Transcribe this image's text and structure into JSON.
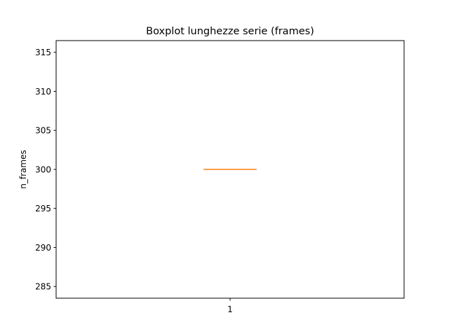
{
  "chart_data": {
    "type": "boxplot",
    "title": "Boxplot lunghezze serie (frames)",
    "xlabel": "",
    "ylabel": "n_frames",
    "categories": [
      "1"
    ],
    "boxes": [
      {
        "category": "1",
        "min": 300,
        "q1": 300,
        "median": 300,
        "q3": 300,
        "max": 300
      }
    ],
    "ylim": [
      283.5,
      316.5
    ],
    "yticks": [
      285,
      290,
      295,
      300,
      305,
      310,
      315
    ],
    "grid": false,
    "colors": {
      "box": "#000000",
      "median": "#ff7f0e",
      "axes": "#000000"
    }
  }
}
